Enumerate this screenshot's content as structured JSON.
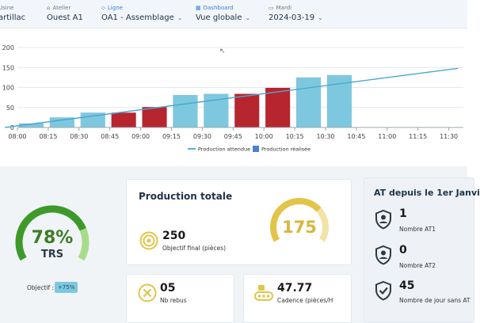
{
  "header": {
    "usine": {
      "label": "Usine",
      "value": "artillac"
    },
    "atelier": {
      "label": "Atelier",
      "value": "Ouest A1"
    },
    "ligne": {
      "label": "Ligne",
      "value": "OA1 - Assemblage"
    },
    "dashboard": {
      "label": "Dashboard",
      "value": "Vue globale"
    },
    "date": {
      "label": "Mardi",
      "value": "2024-03-19"
    }
  },
  "chart_data": {
    "type": "bar",
    "categories": [
      "08:00",
      "08:15",
      "08:30",
      "08:45",
      "09:00",
      "09:15",
      "09:30",
      "09:45",
      "10:00",
      "10:15",
      "10:30",
      "10:45",
      "11:00",
      "11:15",
      "11:30"
    ],
    "y_ticks": [
      "0",
      "50",
      "100",
      "150",
      "200"
    ],
    "ylim": [
      0,
      200
    ],
    "series": [
      {
        "name": "Production réalisée",
        "values": [
          10,
          25,
          37,
          37,
          51,
          81,
          84,
          84,
          99,
          125,
          131,
          null,
          null,
          null,
          null
        ],
        "bar_colors": [
          "#7ec8df",
          "#7ec8df",
          "#7ec8df",
          "#b7252f",
          "#b7252f",
          "#7ec8df",
          "#7ec8df",
          "#b7252f",
          "#b7252f",
          "#7ec8df",
          "#7ec8df"
        ]
      },
      {
        "name": "Production attendue",
        "type": "line",
        "start": [
          -0.4,
          0
        ],
        "end": [
          14.3,
          148
        ]
      }
    ],
    "legend": [
      "Production attendue",
      "Production réalisée"
    ],
    "legend_placement": "bottom-center",
    "colors": {
      "bar": "#7ec8df",
      "bar_late": "#b7252f",
      "line": "#4aa7d0",
      "legend_square": "#4d7fd6"
    }
  },
  "trs": {
    "value": "78%",
    "label": "TRS",
    "fraction": 0.78,
    "objective_label": "Objectif :",
    "objective_value": "+75%",
    "colors": {
      "main": "#3d9a2a",
      "light": "#a7dc8d"
    }
  },
  "production": {
    "title": "Production totale",
    "objective_value": "250",
    "objective_label": "Objectif final (pièces)",
    "gauge_value": "175",
    "gauge_fraction": 0.7,
    "colors": {
      "main": "#e2c44a",
      "light": "#f2e3a6"
    }
  },
  "rebus": {
    "value": "05",
    "label": "Nb rebus"
  },
  "cadence": {
    "value": "47.77",
    "label": "Cadence (pièces/H"
  },
  "at": {
    "title": "AT depuis le 1er Janvi",
    "items": [
      {
        "value": "1",
        "label": "Nombre AT1",
        "icon": "shield-person-icon"
      },
      {
        "value": "0",
        "label": "Nombre AT2",
        "icon": "shield-person-icon"
      },
      {
        "value": "45",
        "label": "Nombre de jour sans AT",
        "icon": "shield-check-icon"
      }
    ]
  }
}
